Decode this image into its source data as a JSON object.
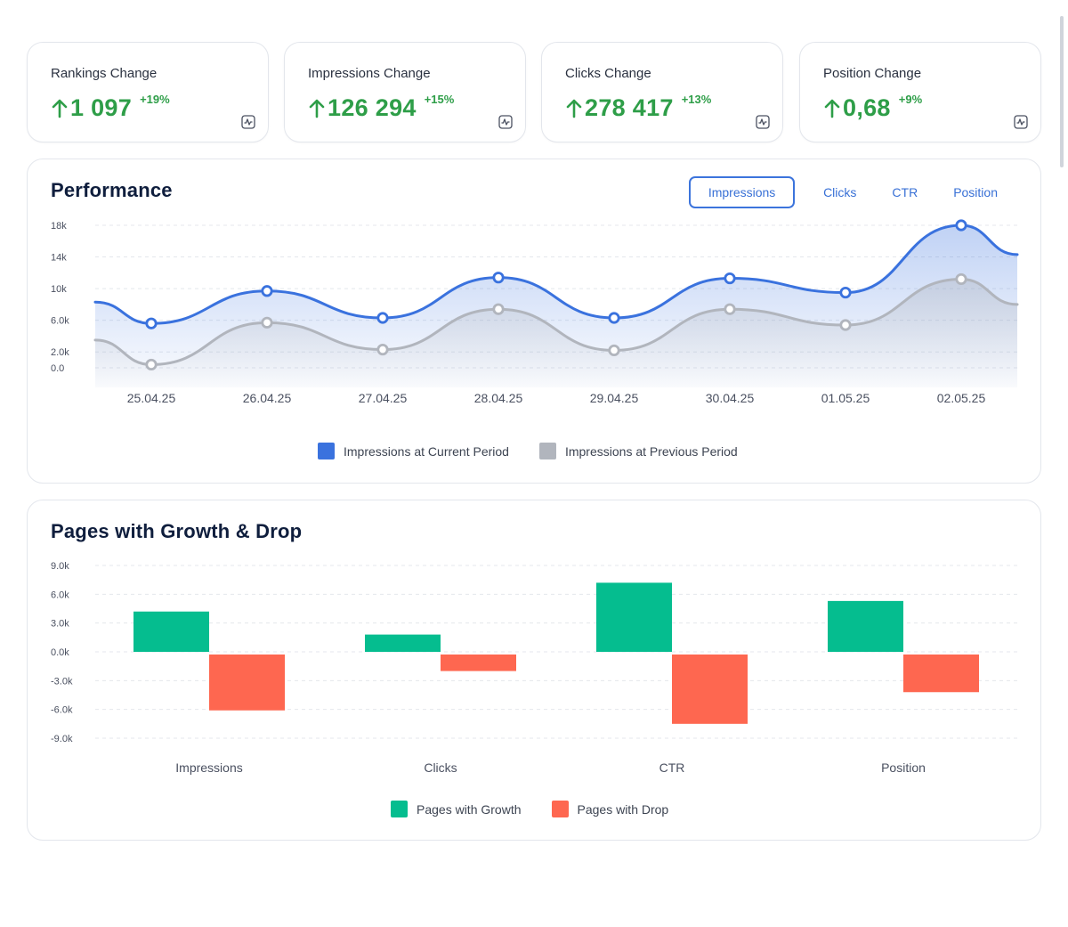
{
  "kpis": [
    {
      "title": "Rankings Change",
      "value": "1 097",
      "pct": "+19%"
    },
    {
      "title": "Impressions Change",
      "value": "126 294",
      "pct": "+15%"
    },
    {
      "title": "Clicks Change",
      "value": "278 417",
      "pct": "+13%"
    },
    {
      "title": "Position Change",
      "value": "0,68",
      "pct": "+9%"
    }
  ],
  "icons": {
    "trend": "arrow-up-icon",
    "chart": "chart-line-icon"
  },
  "colors": {
    "positive": "#2e9e48",
    "current": "#3a72de",
    "previous": "#b1b5bd",
    "growth": "#05bd8f",
    "drop": "#fe6750",
    "accent": "#3870d6"
  },
  "performance": {
    "title": "Performance",
    "tabs": [
      "Impressions",
      "Clicks",
      "CTR",
      "Position"
    ],
    "active_tab": "Impressions",
    "legend": {
      "current": "Impressions at Current Period",
      "previous": "Impressions at Previous Period"
    }
  },
  "growth": {
    "title": "Pages with Growth & Drop",
    "legend": {
      "growth": "Pages with Growth",
      "drop": "Pages with Drop"
    }
  },
  "chart_data": [
    {
      "type": "area",
      "title": "Performance",
      "categories": [
        "25.04.25",
        "26.04.25",
        "27.04.25",
        "28.04.25",
        "29.04.25",
        "30.04.25",
        "01.05.25",
        "02.05.25"
      ],
      "y_ticks": [
        "18k",
        "14k",
        "10k",
        "6.0k",
        "2.0k",
        "0.0"
      ],
      "y_tick_values": [
        18000,
        14000,
        10000,
        6000,
        2000,
        0
      ],
      "ylim": [
        0,
        18000
      ],
      "series": [
        {
          "name": "Impressions at Current Period",
          "values": [
            5600,
            9700,
            6300,
            11400,
            6300,
            11300,
            9500,
            18000
          ],
          "left_edge": 8300,
          "right_edge": 14300
        },
        {
          "name": "Impressions at Previous Period",
          "values": [
            400,
            5700,
            2300,
            7400,
            2200,
            7400,
            5400,
            11200
          ],
          "left_edge": 3500,
          "right_edge": 8000
        }
      ]
    },
    {
      "type": "bar",
      "title": "Pages with Growth & Drop",
      "categories": [
        "Impressions",
        "Clicks",
        "CTR",
        "Position"
      ],
      "y_ticks": [
        "9.0k",
        "6.0k",
        "3.0k",
        "0.0k",
        "-3.0k",
        "-6.0k",
        "-9.0k"
      ],
      "y_tick_values": [
        9000,
        6000,
        3000,
        0,
        -3000,
        -6000,
        -9000
      ],
      "ylim": [
        -9000,
        9000
      ],
      "series": [
        {
          "name": "Pages with Growth",
          "values": [
            4200,
            1800,
            7200,
            5300
          ]
        },
        {
          "name": "Pages with Drop",
          "values": [
            -6100,
            -2000,
            -7500,
            -4200
          ]
        }
      ]
    }
  ]
}
